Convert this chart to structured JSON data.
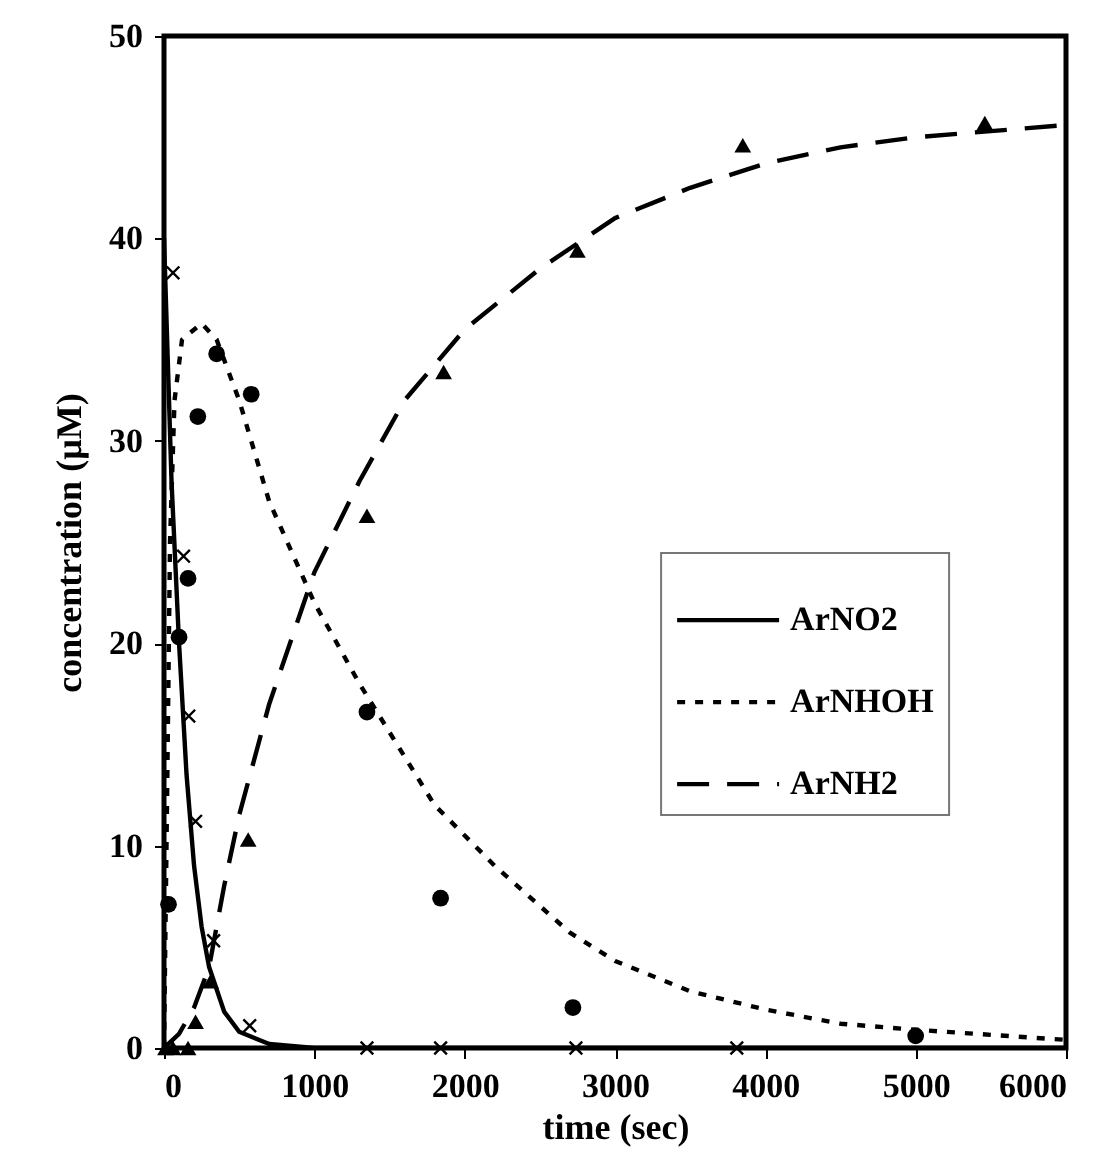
{
  "chart_data": {
    "type": "line",
    "xlabel": "time (sec)",
    "ylabel": "concentration (µM)",
    "xlim": [
      0,
      6000
    ],
    "ylim": [
      0,
      50
    ],
    "xticks": [
      0,
      1000,
      2000,
      3000,
      4000,
      5000,
      6000
    ],
    "yticks": [
      0,
      10,
      20,
      30,
      40,
      50
    ],
    "grid": false,
    "legend": "right",
    "series": [
      {
        "name": "ArNO2",
        "line_style": "solid",
        "color": "#000000",
        "x": [
          0,
          50,
          100,
          150,
          200,
          250,
          300,
          400,
          500,
          700,
          1000,
          6000
        ],
        "values": [
          40,
          28,
          20,
          13.5,
          9,
          6,
          4,
          1.8,
          0.8,
          0.2,
          0,
          0
        ]
      },
      {
        "name": "ArNHOH",
        "line_style": "dotted",
        "color": "#000000",
        "x": [
          0,
          20,
          40,
          70,
          120,
          250,
          350,
          500,
          700,
          1000,
          1300,
          1800,
          2200,
          2700,
          3000,
          3500,
          4000,
          4500,
          5000,
          6000
        ],
        "values": [
          0,
          12,
          25,
          32,
          35,
          35.8,
          35,
          32,
          27,
          22,
          18,
          12,
          9,
          5.7,
          4.3,
          2.8,
          1.9,
          1.2,
          0.9,
          0.4
        ]
      },
      {
        "name": "ArNH2",
        "line_style": "dashed",
        "color": "#000000",
        "x": [
          0,
          100,
          200,
          300,
          400,
          500,
          700,
          1000,
          1300,
          1600,
          2000,
          2500,
          3000,
          3500,
          4000,
          4500,
          5000,
          6000
        ],
        "values": [
          0,
          0.7,
          2,
          4,
          8,
          11.5,
          17,
          23.5,
          28,
          32,
          35.5,
          38.5,
          41,
          42.5,
          43.7,
          44.5,
          45,
          45.6
        ]
      },
      {
        "type": "scatter",
        "marker": "cross",
        "color": "#000000",
        "x": [
          60,
          130,
          165,
          210,
          330,
          570,
          1350,
          1840,
          2740,
          3810
        ],
        "values": [
          38.3,
          24.3,
          16.4,
          11.2,
          5.3,
          1.1,
          0,
          0,
          0,
          0
        ]
      },
      {
        "type": "scatter",
        "marker": "circle",
        "color": "#000000",
        "x": [
          30,
          100,
          160,
          225,
          350,
          580,
          1350,
          1840,
          2720,
          5000
        ],
        "values": [
          7.1,
          20.3,
          23.2,
          31.2,
          34.3,
          32.3,
          16.6,
          7.4,
          2,
          0.6
        ]
      },
      {
        "type": "scatter",
        "marker": "triangle",
        "color": "#000000",
        "x": [
          10,
          60,
          160,
          210,
          310,
          560,
          1350,
          1860,
          2750,
          3850,
          5460
        ],
        "values": [
          0,
          0,
          0,
          1.3,
          3.3,
          10.3,
          26.3,
          33.4,
          39.4,
          44.6,
          45.7
        ]
      }
    ]
  }
}
